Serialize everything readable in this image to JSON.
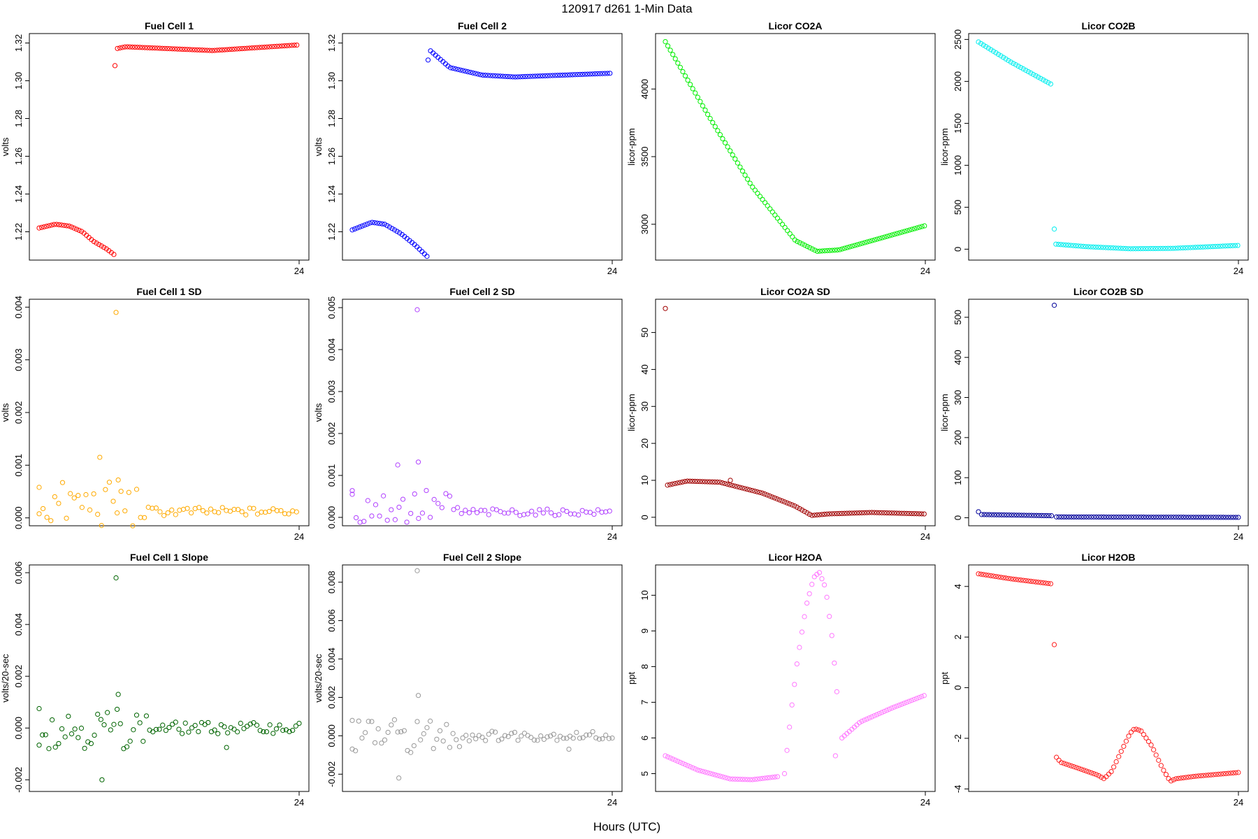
{
  "figure": {
    "title": "120917   d261   1-Min Data",
    "xlabel": "Hours (UTC)"
  },
  "chart_data": [
    {
      "id": "fc1",
      "type": "scatter",
      "title": "Fuel Cell 1",
      "ylabel": "volts",
      "color": "#ff0000",
      "xlim": [
        0,
        24
      ],
      "ylim": [
        1.205,
        1.325
      ],
      "yticks": [
        "1.22",
        "1.24",
        "1.26",
        "1.28",
        "1.30",
        "1.32"
      ],
      "xticks": [
        "24"
      ],
      "segments": [
        {
          "x0": 0,
          "x1": 6.9,
          "kn": [
            [
              0,
              1.222
            ],
            [
              1.5,
              1.224
            ],
            [
              2.8,
              1.223
            ],
            [
              4,
              1.22
            ],
            [
              5,
              1.215
            ],
            [
              6.2,
              1.211
            ],
            [
              6.9,
              1.208
            ]
          ]
        },
        {
          "x0": 7.0,
          "x1": 24,
          "kn": [
            [
              7.0,
              1.308
            ],
            [
              7.15,
              1.317
            ],
            [
              8,
              1.318
            ],
            [
              12,
              1.317
            ],
            [
              16,
              1.316
            ],
            [
              24,
              1.319
            ]
          ]
        }
      ],
      "step": 0.23
    },
    {
      "id": "fc2",
      "type": "scatter",
      "title": "Fuel Cell 2",
      "ylabel": "volts",
      "color": "#0000ff",
      "xlim": [
        0,
        24
      ],
      "ylim": [
        1.205,
        1.325
      ],
      "yticks": [
        "1.22",
        "1.24",
        "1.26",
        "1.28",
        "1.30",
        "1.32"
      ],
      "xticks": [
        "24"
      ],
      "segments": [
        {
          "x0": 0,
          "x1": 6.9,
          "kn": [
            [
              0,
              1.221
            ],
            [
              1.8,
              1.225
            ],
            [
              3,
              1.224
            ],
            [
              4.5,
              1.219
            ],
            [
              5.8,
              1.213
            ],
            [
              6.9,
              1.207
            ]
          ]
        },
        {
          "x0": 7.0,
          "x1": 24,
          "kn": [
            [
              7.0,
              1.311
            ],
            [
              7.2,
              1.316
            ],
            [
              9,
              1.307
            ],
            [
              12,
              1.303
            ],
            [
              15,
              1.302
            ],
            [
              24,
              1.304
            ]
          ]
        }
      ],
      "step": 0.23
    },
    {
      "id": "co2a",
      "type": "scatter",
      "title": "Licor CO2A",
      "ylabel": "licor-ppm",
      "color": "#00ee00",
      "xlim": [
        0,
        24
      ],
      "ylim": [
        2735,
        4410
      ],
      "yticks": [
        "3000",
        "3500",
        "4000"
      ],
      "xticks": [
        "24"
      ],
      "segments": [
        {
          "x0": 0,
          "x1": 24,
          "kn": [
            [
              0,
              4350
            ],
            [
              4,
              3800
            ],
            [
              8,
              3280
            ],
            [
              12,
              2880
            ],
            [
              14,
              2800
            ],
            [
              16,
              2810
            ],
            [
              20,
              2900
            ],
            [
              24,
              2990
            ]
          ]
        }
      ],
      "step": 0.23
    },
    {
      "id": "co2b",
      "type": "scatter",
      "title": "Licor CO2B",
      "ylabel": "licor-ppm",
      "color": "#00eeee",
      "xlim": [
        0,
        24
      ],
      "ylim": [
        -130,
        2570
      ],
      "yticks": [
        "0",
        "500",
        "1000",
        "1500",
        "2000",
        "2500"
      ],
      "xticks": [
        "24"
      ],
      "segments": [
        {
          "x0": 0,
          "x1": 6.8,
          "kn": [
            [
              0,
              2470
            ],
            [
              3,
              2230
            ],
            [
              6.8,
              1960
            ]
          ]
        },
        {
          "x0": 7.0,
          "x1": 7.0,
          "kn": [
            [
              7.0,
              240
            ]
          ]
        },
        {
          "x0": 7.15,
          "x1": 24,
          "kn": [
            [
              7.15,
              60
            ],
            [
              10,
              30
            ],
            [
              14,
              5
            ],
            [
              18,
              10
            ],
            [
              24,
              45
            ]
          ]
        }
      ],
      "step": 0.23
    },
    {
      "id": "fc1sd",
      "type": "scatter",
      "title": "Fuel Cell 1 SD",
      "ylabel": "volts",
      "color": "#ffaa00",
      "xlim": [
        0,
        24
      ],
      "ylim": [
        -0.00015,
        0.00415
      ],
      "yticks": [
        "0.000",
        "0.001",
        "0.002",
        "0.003",
        "0.004"
      ],
      "xticks": [
        "24"
      ],
      "base": {
        "x0": 0,
        "x1": 24,
        "kn": [
          [
            0,
            0.00025
          ],
          [
            8,
            0.00025
          ],
          [
            10,
            0.00012
          ],
          [
            24,
            0.00012
          ]
        ]
      },
      "step": 0.36,
      "amp": 0.00045,
      "ampDecay": [
        [
          0,
          1
        ],
        [
          9,
          1
        ],
        [
          10,
          0.2
        ],
        [
          24,
          0.15
        ]
      ],
      "outliers": [
        [
          7.1,
          0.0039
        ],
        [
          5.6,
          0.00115
        ],
        [
          7.3,
          0.00072
        ],
        [
          0,
          0.00058
        ]
      ]
    },
    {
      "id": "fc2sd",
      "type": "scatter",
      "title": "Fuel Cell 2 SD",
      "ylabel": "volts",
      "color": "#b040ff",
      "xlim": [
        0,
        24
      ],
      "ylim": [
        -0.0002,
        0.0052
      ],
      "yticks": [
        "0.000",
        "0.001",
        "0.002",
        "0.003",
        "0.004",
        "0.005"
      ],
      "xticks": [
        "24"
      ],
      "base": {
        "x0": 0,
        "x1": 24,
        "kn": [
          [
            0,
            0.00025
          ],
          [
            8,
            0.00025
          ],
          [
            10,
            0.00012
          ],
          [
            24,
            0.00012
          ]
        ]
      },
      "step": 0.36,
      "amp": 0.00045,
      "ampDecay": [
        [
          0,
          1
        ],
        [
          9,
          1
        ],
        [
          10,
          0.2
        ],
        [
          24,
          0.15
        ]
      ],
      "outliers": [
        [
          6.0,
          0.00495
        ],
        [
          6.1,
          0.00132
        ],
        [
          4.2,
          0.00125
        ],
        [
          0,
          0.00055
        ]
      ]
    },
    {
      "id": "co2asd",
      "type": "scatter",
      "title": "Licor CO2A SD",
      "ylabel": "licor-ppm",
      "color": "#a00000",
      "xlim": [
        0,
        24
      ],
      "ylim": [
        -2.3,
        59
      ],
      "yticks": [
        "0",
        "10",
        "20",
        "30",
        "40",
        "50"
      ],
      "xticks": [
        "24"
      ],
      "segments": [
        {
          "x0": 0.2,
          "x1": 24,
          "kn": [
            [
              0.2,
              8.7
            ],
            [
              2,
              9.8
            ],
            [
              5,
              9.5
            ],
            [
              9,
              6.5
            ],
            [
              12,
              3.0
            ],
            [
              13.5,
              0.5
            ],
            [
              15,
              0.9
            ],
            [
              19,
              1.3
            ],
            [
              24,
              0.9
            ]
          ]
        }
      ],
      "step": 0.23,
      "outliers": [
        [
          0,
          56.5
        ],
        [
          6,
          10.0
        ]
      ]
    },
    {
      "id": "co2bsd",
      "type": "scatter",
      "title": "Licor CO2B SD",
      "ylabel": "licor-ppm",
      "color": "#000099",
      "xlim": [
        0,
        24
      ],
      "ylim": [
        -20,
        545
      ],
      "yticks": [
        "0",
        "100",
        "200",
        "300",
        "400",
        "500"
      ],
      "xticks": [
        "24"
      ],
      "segments": [
        {
          "x0": 0.3,
          "x1": 6.8,
          "kn": [
            [
              0.3,
              8
            ],
            [
              6.8,
              5
            ]
          ]
        },
        {
          "x0": 7.2,
          "x1": 24,
          "kn": [
            [
              7.2,
              2
            ],
            [
              24,
              1
            ]
          ]
        }
      ],
      "step": 0.23,
      "outliers": [
        [
          0,
          15
        ],
        [
          7.0,
          530
        ]
      ]
    },
    {
      "id": "fc1slope",
      "type": "scatter",
      "title": "Fuel Cell 1 Slope",
      "ylabel": "volts/20-sec",
      "color": "#006400",
      "xlim": [
        0,
        24
      ],
      "ylim": [
        -0.00245,
        0.0063
      ],
      "yticks": [
        "-0.002",
        "0.000",
        "0.002",
        "0.004",
        "0.006"
      ],
      "xticks": [
        "24"
      ],
      "base": {
        "x0": 0,
        "x1": 24,
        "kn": [
          [
            0,
            0
          ],
          [
            24,
            0
          ]
        ]
      },
      "step": 0.3,
      "amp": 0.0008,
      "ampDecay": [
        [
          0,
          1
        ],
        [
          9,
          1
        ],
        [
          11,
          0.3
        ],
        [
          24,
          0.25
        ]
      ],
      "outliers": [
        [
          7.1,
          0.0058
        ],
        [
          5.8,
          -0.002
        ],
        [
          7.3,
          0.0013
        ],
        [
          0,
          0.00075
        ],
        [
          17.3,
          -0.00075
        ]
      ]
    },
    {
      "id": "fc2slope",
      "type": "scatter",
      "title": "Fuel Cell 2 Slope",
      "ylabel": "volts/20-sec",
      "color": "#999999",
      "xlim": [
        0,
        24
      ],
      "ylim": [
        -0.0029,
        0.0089
      ],
      "yticks": [
        "-0.002",
        "0.000",
        "0.002",
        "0.004",
        "0.006",
        "0.008"
      ],
      "xticks": [
        "24"
      ],
      "base": {
        "x0": 0,
        "x1": 24,
        "kn": [
          [
            0,
            0
          ],
          [
            24,
            0
          ]
        ]
      },
      "step": 0.3,
      "amp": 0.0009,
      "ampDecay": [
        [
          0,
          1
        ],
        [
          9,
          1
        ],
        [
          11,
          0.3
        ],
        [
          24,
          0.25
        ]
      ],
      "outliers": [
        [
          6.0,
          0.0086
        ],
        [
          6.1,
          0.0021
        ],
        [
          4.3,
          -0.0022
        ],
        [
          0,
          0.0008
        ],
        [
          20,
          -0.0007
        ]
      ]
    },
    {
      "id": "h2oa",
      "type": "scatter",
      "title": "Licor H2OA",
      "ylabel": "ppt",
      "color": "#ff77ff",
      "xlim": [
        0,
        24
      ],
      "ylim": [
        4.5,
        10.85
      ],
      "yticks": [
        "5",
        "6",
        "7",
        "8",
        "9",
        "10"
      ],
      "xticks": [
        "24"
      ],
      "segments": [
        {
          "x0": 0,
          "x1": 10.5,
          "kn": [
            [
              0,
              5.5
            ],
            [
              3,
              5.1
            ],
            [
              6,
              4.85
            ],
            [
              8,
              4.83
            ],
            [
              10.5,
              4.92
            ]
          ]
        },
        {
          "x0": 11.0,
          "x1": 16.0,
          "kn": [
            [
              11.0,
              5.0
            ],
            [
              11.6,
              6.7
            ],
            [
              12.2,
              8.2
            ],
            [
              13,
              9.7
            ],
            [
              13.7,
              10.5
            ],
            [
              14.2,
              10.65
            ],
            [
              14.8,
              10.2
            ],
            [
              15.4,
              8.8
            ],
            [
              16.0,
              6.7
            ]
          ]
        },
        {
          "x0": 15.7,
          "x1": 15.9,
          "kn": [
            [
              15.7,
              5.5
            ],
            [
              15.9,
              5.9
            ]
          ]
        },
        {
          "x0": 16.3,
          "x1": 24,
          "kn": [
            [
              16.3,
              6.0
            ],
            [
              18,
              6.45
            ],
            [
              21,
              6.85
            ],
            [
              24,
              7.2
            ]
          ]
        }
      ],
      "step": 0.23
    },
    {
      "id": "h2ob",
      "type": "scatter",
      "title": "Licor H2OB",
      "ylabel": "ppt",
      "color": "#ff2020",
      "xlim": [
        0,
        24
      ],
      "ylim": [
        -4.1,
        4.85
      ],
      "yticks": [
        "-4",
        "-2",
        "0",
        "2",
        "4"
      ],
      "xticks": [
        "24"
      ],
      "segments": [
        {
          "x0": 0,
          "x1": 6.8,
          "kn": [
            [
              0,
              4.5
            ],
            [
              3,
              4.3
            ],
            [
              6.8,
              4.1
            ]
          ]
        },
        {
          "x0": 7.0,
          "x1": 7.0,
          "kn": [
            [
              7.0,
              1.7
            ]
          ]
        },
        {
          "x0": 7.2,
          "x1": 24,
          "kn": [
            [
              7.2,
              -2.75
            ],
            [
              7.6,
              -2.95
            ],
            [
              9,
              -3.15
            ],
            [
              11,
              -3.45
            ],
            [
              11.6,
              -3.6
            ],
            [
              12.3,
              -3.3
            ],
            [
              13.2,
              -2.5
            ],
            [
              14,
              -1.8
            ],
            [
              14.4,
              -1.62
            ],
            [
              15,
              -1.7
            ],
            [
              16,
              -2.3
            ],
            [
              17,
              -3.2
            ],
            [
              17.7,
              -3.7
            ],
            [
              18.2,
              -3.6
            ],
            [
              20,
              -3.5
            ],
            [
              24,
              -3.35
            ]
          ]
        }
      ],
      "step": 0.23
    }
  ]
}
